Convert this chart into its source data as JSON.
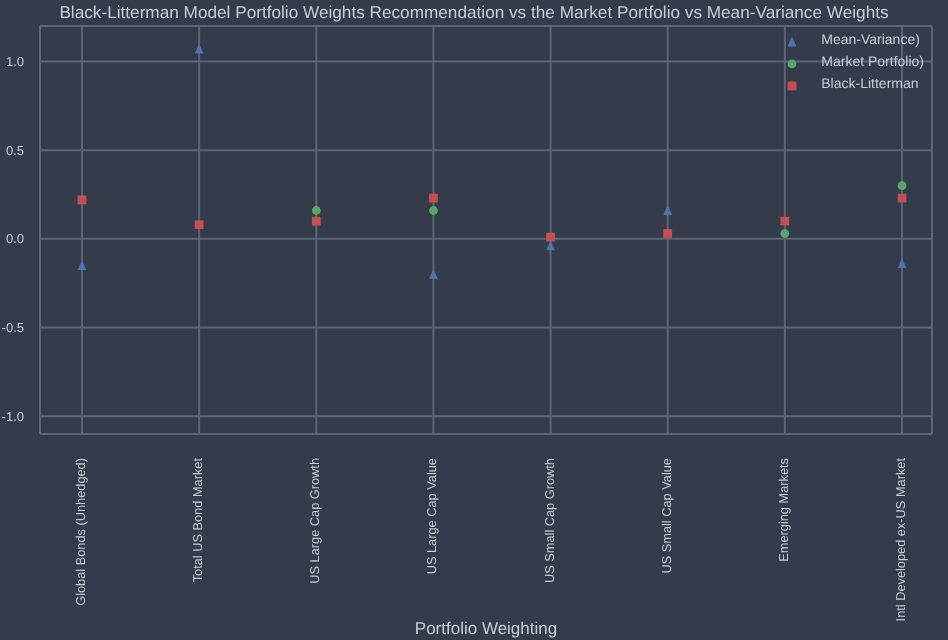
{
  "chart_data": {
    "type": "scatter",
    "title": "Black-Litterman Model Portfolio Weights Recommendation vs the Market Portfolio vs Mean-Variance Weights",
    "xlabel": "Portfolio Weighting",
    "categories": [
      "Global Bonds (Unhedged)",
      "Total US Bond Market",
      "US Large Cap Growth",
      "US Large Cap Value",
      "US Small Cap Growth",
      "US Small Cap Value",
      "Emerging Markets",
      "Intl Developed ex-US Market"
    ],
    "series": [
      {
        "name": "Mean-Variance)",
        "color": "#4c72b0",
        "marker": "triangle",
        "values": [
          -0.15,
          1.07,
          null,
          -0.2,
          -0.04,
          0.16,
          null,
          -0.14
        ]
      },
      {
        "name": "Market Portfolio)",
        "color": "#55a868",
        "marker": "circle",
        "values": [
          null,
          null,
          0.16,
          0.16,
          null,
          null,
          0.03,
          0.3
        ]
      },
      {
        "name": "Black-Litterman",
        "color": "#c44e52",
        "marker": "square",
        "values": [
          0.22,
          0.08,
          0.1,
          0.23,
          0.01,
          0.03,
          0.1,
          0.23
        ]
      }
    ],
    "ylim": [
      -1.1,
      1.2
    ],
    "yticks": [
      {
        "value": -1,
        "label": "-1.0"
      },
      {
        "value": -0.5,
        "label": "-0.5"
      },
      {
        "value": 0,
        "label": "0.0"
      },
      0.5,
      {
        "value": 1,
        "label": "1.0"
      }
    ],
    "grid": true,
    "legend": "top right"
  }
}
